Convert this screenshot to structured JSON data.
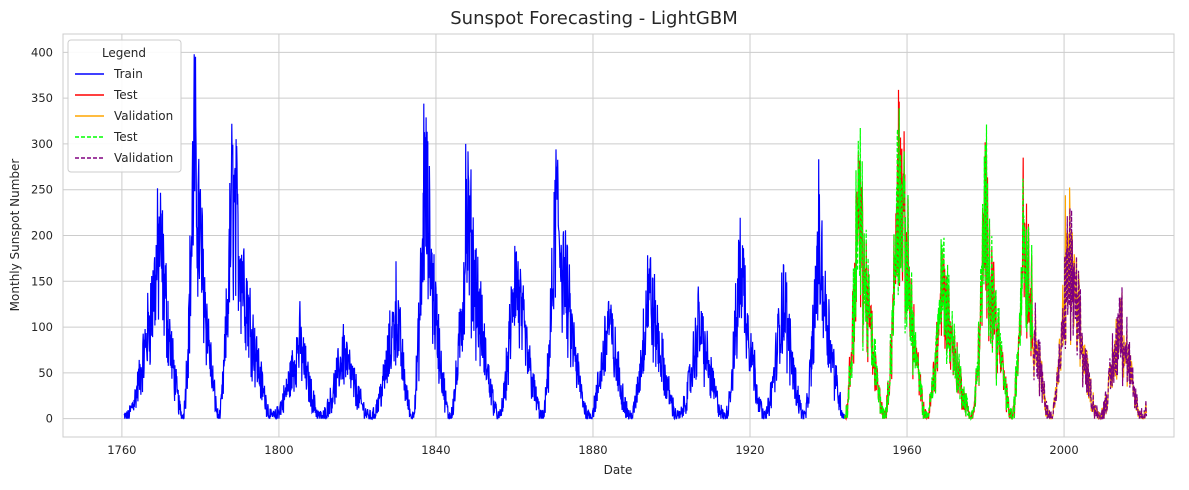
{
  "chart_data": {
    "type": "line",
    "title": "Sunspot Forecasting - LightGBM",
    "xlabel": "Date",
    "ylabel": "Monthly Sunspot Number",
    "xlim": [
      1745,
      2028
    ],
    "ylim": [
      -20,
      420
    ],
    "xticks": [
      1760,
      1800,
      1840,
      1880,
      1920,
      1960,
      2000
    ],
    "yticks": [
      0,
      50,
      100,
      150,
      200,
      250,
      300,
      350,
      400
    ],
    "grid": true,
    "legend": {
      "title": "Legend",
      "placement": "top-left"
    },
    "cycles": [
      {
        "start": 1761.0,
        "peak": 1769.7,
        "max": 190
      },
      {
        "start": 1775.5,
        "peak": 1778.4,
        "max": 290
      },
      {
        "start": 1784.7,
        "peak": 1788.1,
        "max": 245
      },
      {
        "start": 1798.3,
        "peak": 1805.2,
        "max": 85
      },
      {
        "start": 1810.6,
        "peak": 1816.4,
        "max": 75
      },
      {
        "start": 1823.3,
        "peak": 1829.9,
        "max": 120
      },
      {
        "start": 1833.9,
        "peak": 1837.2,
        "max": 250
      },
      {
        "start": 1843.5,
        "peak": 1848.1,
        "max": 215
      },
      {
        "start": 1856.0,
        "peak": 1860.1,
        "max": 160
      },
      {
        "start": 1867.2,
        "peak": 1870.6,
        "max": 230
      },
      {
        "start": 1878.9,
        "peak": 1883.9,
        "max": 110
      },
      {
        "start": 1889.6,
        "peak": 1894.1,
        "max": 145
      },
      {
        "start": 1901.7,
        "peak": 1907.0,
        "max": 105
      },
      {
        "start": 1913.6,
        "peak": 1917.6,
        "max": 175
      },
      {
        "start": 1923.6,
        "peak": 1928.4,
        "max": 135
      },
      {
        "start": 1933.8,
        "peak": 1937.4,
        "max": 190
      },
      {
        "start": 1944.2,
        "peak": 1947.5,
        "max": 230
      },
      {
        "start": 1954.3,
        "peak": 1957.9,
        "max": 270
      },
      {
        "start": 1964.9,
        "peak": 1968.9,
        "max": 150
      },
      {
        "start": 1976.5,
        "peak": 1979.9,
        "max": 215
      },
      {
        "start": 1986.8,
        "peak": 1989.6,
        "max": 210
      },
      {
        "start": 1996.4,
        "peak": 2001.2,
        "max": 175
      },
      {
        "start": 2008.9,
        "peak": 2014.3,
        "max": 110
      },
      {
        "start": 2019.9,
        "peak": 2025.0,
        "max": 140
      }
    ],
    "series": [
      {
        "name": "Train",
        "color": "#0000ff",
        "style": "solid",
        "x_range": [
          1760.5,
          1944.0
        ],
        "spikes": [
          [
            1778.4,
            398
          ],
          [
            1836.9,
            344
          ],
          [
            1847.6,
            300
          ],
          [
            1870.6,
            294
          ],
          [
            1788.1,
            290
          ]
        ]
      },
      {
        "name": "Test",
        "color": "#ff0000",
        "style": "solid",
        "x_range": [
          1944.0,
          1992.0
        ],
        "spikes": [
          [
            1957.8,
            359
          ],
          [
            1989.6,
            285
          ],
          [
            1947.6,
            288
          ]
        ]
      },
      {
        "name": "Validation",
        "color": "#ffa500",
        "style": "solid",
        "x_range": [
          1992.0,
          2021.0
        ],
        "spikes": [
          [
            2000.3,
            244
          ]
        ]
      },
      {
        "name": "Test",
        "color": "#00ff00",
        "style": "dashed",
        "x_range": [
          1944.0,
          1992.0
        ],
        "spikes": [
          [
            1957.5,
            310
          ]
        ]
      },
      {
        "name": "Validation",
        "color": "#800080",
        "style": "dashed",
        "x_range": [
          1992.0,
          2021.0
        ],
        "spikes": []
      }
    ]
  }
}
